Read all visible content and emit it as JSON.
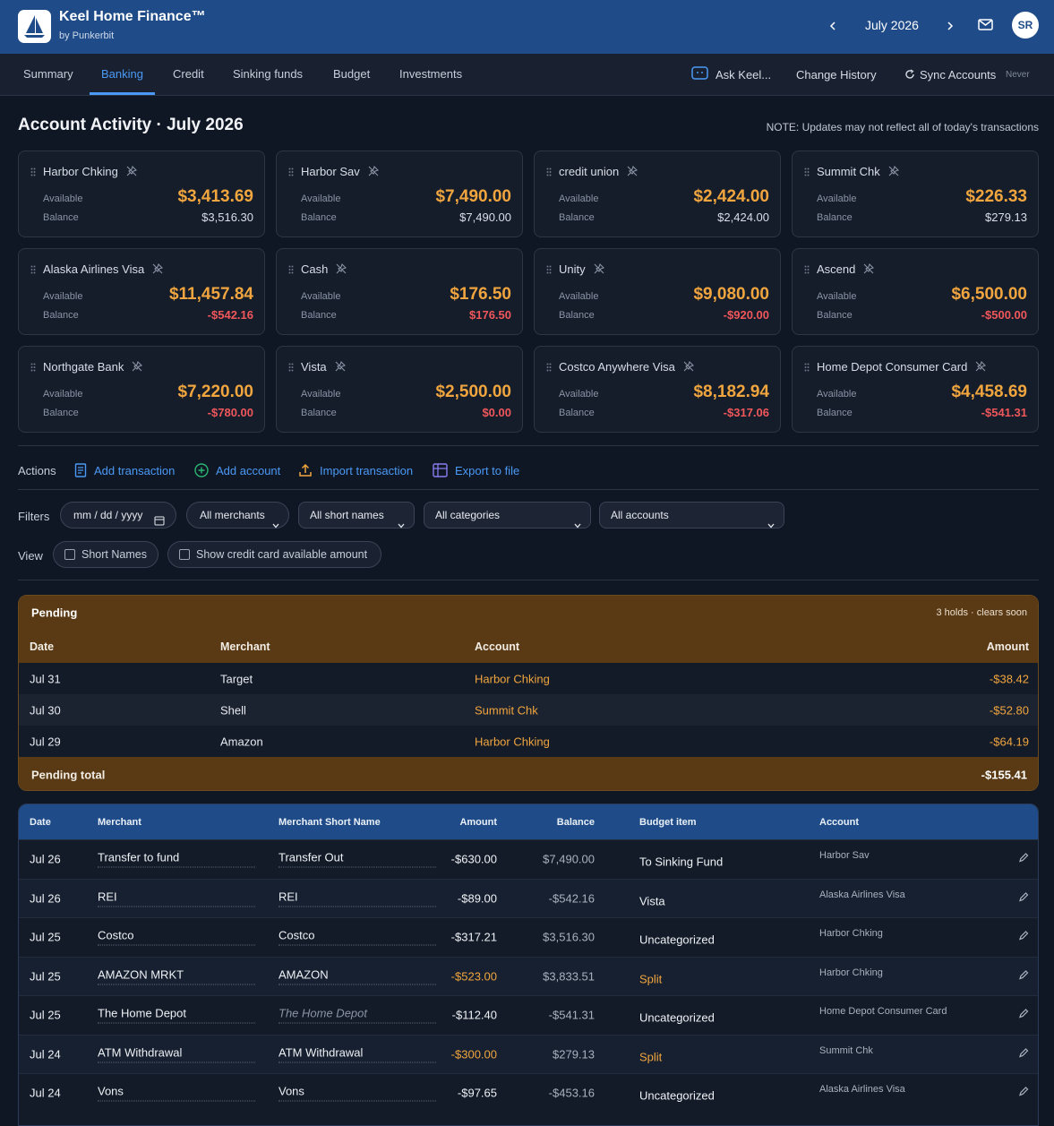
{
  "header": {
    "app_name": "Keel Home Finance™",
    "byline": "by Punkerbit",
    "month": "July 2026",
    "avatar": "SR"
  },
  "nav": {
    "tabs": [
      "Summary",
      "Banking",
      "Credit",
      "Sinking funds",
      "Budget",
      "Investments"
    ],
    "active_tab": "Banking",
    "ask": "Ask Keel...",
    "history": "Change History",
    "sync": "Sync Accounts",
    "sync_status": "Never"
  },
  "page": {
    "title": "Account Activity · July 2026",
    "note": "NOTE: Updates may not reflect all of today's transactions"
  },
  "account_labels": {
    "available": "Available",
    "balance": "Balance"
  },
  "accounts": [
    {
      "name": "Harbor Chking",
      "available": "$3,413.69",
      "balance": "$3,516.30"
    },
    {
      "name": "Harbor Sav",
      "available": "$7,490.00",
      "balance": "$7,490.00"
    },
    {
      "name": "credit union",
      "available": "$2,424.00",
      "balance": "$2,424.00"
    },
    {
      "name": "Summit Chk",
      "available": "$226.33",
      "balance": "$279.13"
    },
    {
      "name": "Alaska Airlines Visa",
      "available": "$11,457.84",
      "balance": "-$542.16"
    },
    {
      "name": "Cash",
      "available": "$176.50",
      "balance": "$176.50"
    },
    {
      "name": "Unity",
      "available": "$9,080.00",
      "balance": "-$920.00"
    },
    {
      "name": "Ascend",
      "available": "$6,500.00",
      "balance": "-$500.00"
    },
    {
      "name": "Northgate Bank",
      "available": "$7,220.00",
      "balance": "-$780.00"
    },
    {
      "name": "Vista",
      "available": "$2,500.00",
      "balance": "$0.00"
    },
    {
      "name": "Costco Anywhere Visa",
      "available": "$8,182.94",
      "balance": "-$317.06"
    },
    {
      "name": "Home Depot Consumer Card",
      "available": "$4,458.69",
      "balance": "-$541.31"
    }
  ],
  "actions": {
    "label": "Actions",
    "items": [
      "Add transaction",
      "Add account",
      "Import transaction",
      "Export to file"
    ]
  },
  "filters": {
    "label": "Filters",
    "date_placeholder": "mm / dd / yyyy",
    "selects": [
      "All merchants",
      "All short names",
      "All categories",
      "All accounts"
    ]
  },
  "view": {
    "label": "View",
    "options": [
      "Short Names",
      "Show credit card available amount"
    ]
  },
  "pending": {
    "title": "Pending",
    "summary": "3 holds · clears soon",
    "columns": [
      "Date",
      "Merchant",
      "Account",
      "Amount"
    ],
    "rows": [
      [
        "Jul 31",
        "Target",
        "Harbor Chking",
        "-$38.42"
      ],
      [
        "Jul 30",
        "Shell",
        "Summit Chk",
        "-$52.80"
      ],
      [
        "Jul 29",
        "Amazon",
        "Harbor Chking",
        "-$64.19"
      ]
    ],
    "total_label": "Pending total",
    "total": "-$155.41"
  },
  "transactions": {
    "columns": [
      "Date",
      "Merchant",
      "Merchant Short Name",
      "Amount",
      "Balance",
      "Budget item",
      "Account"
    ],
    "rows": [
      [
        "Jul 26",
        "Transfer to fund",
        "Transfer Out",
        "-$630.00",
        "$7,490.00",
        "To Sinking Fund",
        "Harbor Sav"
      ],
      [
        "Jul 26",
        "REI",
        "REI",
        "-$89.00",
        "-$542.16",
        "Vista",
        "Alaska Airlines Visa"
      ],
      [
        "Jul 25",
        "Costco",
        "Costco",
        "-$317.21",
        "$3,516.30",
        "Uncategorized",
        "Harbor Chking"
      ],
      [
        "Jul 25",
        "AMAZON MRKT",
        "AMAZON",
        "-$523.00",
        "$3,833.51",
        "Split",
        "Harbor Chking"
      ],
      [
        "Jul 25",
        "The Home Depot",
        "The Home Depot",
        "-$112.40",
        "-$541.31",
        "Uncategorized",
        "Home Depot Consumer Card"
      ],
      [
        "Jul 24",
        "ATM Withdrawal",
        "ATM Withdrawal",
        "-$300.00",
        "$279.13",
        "Split",
        "Summit Chk"
      ],
      [
        "Jul 24",
        "Vons",
        "Vons",
        "-$97.65",
        "-$453.16",
        "Uncategorized",
        "Alaska Airlines Visa"
      ]
    ]
  }
}
